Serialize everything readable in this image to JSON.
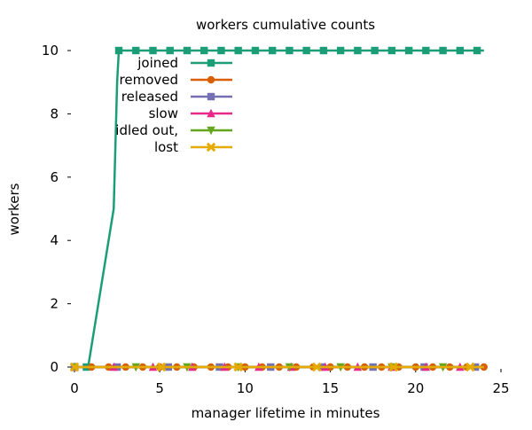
{
  "chart_data": {
    "type": "line",
    "title": "workers cumulative counts",
    "xlabel": "manager lifetime in minutes",
    "ylabel": "workers",
    "xlim": [
      0,
      25
    ],
    "ylim": [
      0,
      10
    ],
    "x_ticks": [
      "0",
      "5",
      "10",
      "15",
      "20",
      "25"
    ],
    "y_ticks": [
      "0",
      "2",
      "4",
      "6",
      "8",
      "10"
    ],
    "grid": false,
    "legend_position": "top-left",
    "series": [
      {
        "name": "joined",
        "color": "#1b9e77",
        "marker": "square",
        "x": [
          0,
          0.8,
          2.3,
          2.5,
          2.6,
          24
        ],
        "y": [
          0,
          0,
          5,
          9,
          10,
          10
        ],
        "marker_x": [
          0,
          0.7,
          2.6,
          3.6,
          4.6,
          5.6,
          6.6,
          7.6,
          8.6,
          9.6,
          10.6,
          11.6,
          12.6,
          13.6,
          14.6,
          15.6,
          16.6,
          17.6,
          18.6,
          19.6,
          20.6,
          21.6,
          22.6,
          23.6
        ],
        "marker_y": [
          0,
          0,
          10,
          10,
          10,
          10,
          10,
          10,
          10,
          10,
          10,
          10,
          10,
          10,
          10,
          10,
          10,
          10,
          10,
          10,
          10,
          10,
          10,
          10
        ]
      },
      {
        "name": "removed",
        "color": "#d95f02",
        "marker": "circle",
        "x": [
          0,
          24
        ],
        "y": [
          0,
          0
        ],
        "marker_x": [
          0,
          1,
          2,
          3,
          4,
          5,
          6,
          7,
          8,
          9,
          10,
          11,
          12,
          13,
          14,
          15,
          16,
          17,
          18,
          19,
          20,
          21,
          22,
          23,
          24
        ],
        "marker_y": [
          0,
          0,
          0,
          0,
          0,
          0,
          0,
          0,
          0,
          0,
          0,
          0,
          0,
          0,
          0,
          0,
          0,
          0,
          0,
          0,
          0,
          0,
          0,
          0,
          0
        ]
      },
      {
        "name": "released",
        "color": "#7570b3",
        "marker": "square",
        "x": [
          0,
          24
        ],
        "y": [
          0,
          0
        ],
        "marker_x": [
          0,
          2.5,
          5.5,
          8.5,
          11.5,
          14.5,
          17.5,
          20.5,
          23.5
        ],
        "marker_y": [
          0,
          0,
          0,
          0,
          0,
          0,
          0,
          0,
          0
        ]
      },
      {
        "name": "slow",
        "color": "#e7298a",
        "marker": "triangle",
        "x": [
          0,
          24
        ],
        "y": [
          0,
          0
        ],
        "marker_x": [
          0,
          2.3,
          4.6,
          6.9,
          8.8,
          10.8,
          12.7,
          14.7,
          16.6,
          18.6,
          20.6,
          22.6
        ],
        "marker_y": [
          0,
          0,
          0,
          0,
          0,
          0,
          0,
          0,
          0,
          0,
          0,
          0
        ]
      },
      {
        "name": "idled out,",
        "color": "#66a61e",
        "marker": "triangle-down",
        "x": [
          0,
          24
        ],
        "y": [
          0,
          0
        ],
        "marker_x": [
          0,
          3.6,
          6.6,
          9.6,
          12.6,
          15.6,
          18.6,
          21.6
        ],
        "marker_y": [
          0,
          0,
          0,
          0,
          0,
          0,
          0,
          0
        ]
      },
      {
        "name": "lost",
        "color": "#e6ab02",
        "marker": "x",
        "x": [
          0,
          24
        ],
        "y": [
          0,
          0
        ],
        "marker_x": [
          0,
          5.1,
          9.6,
          14.2,
          18.7,
          23.2
        ],
        "marker_y": [
          0,
          0,
          0,
          0,
          0,
          0
        ]
      }
    ]
  }
}
